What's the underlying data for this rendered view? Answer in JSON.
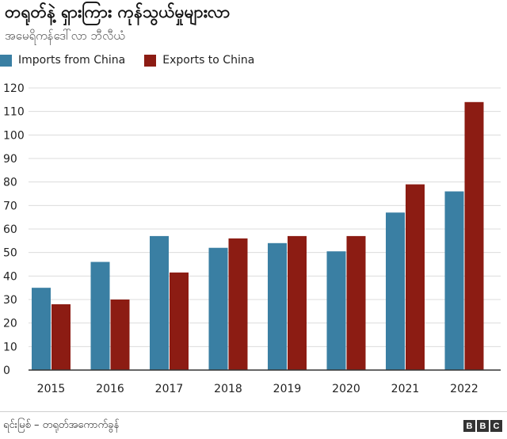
{
  "chart_data": {
    "type": "bar",
    "title": "တရုတ်နဲ့ ရှားကြား ကုန်သွယ်မှုများလာ",
    "subtitle": "အမေရိကန်ဒေါ်လာ ဘီလီယံ",
    "categories": [
      "2015",
      "2016",
      "2017",
      "2018",
      "2019",
      "2020",
      "2021",
      "2022"
    ],
    "series": [
      {
        "name": "Imports from China",
        "color": "#3a7fa3",
        "values": [
          35,
          46,
          57,
          52,
          54,
          50.5,
          67,
          76
        ]
      },
      {
        "name": "Exports to China",
        "color": "#8c1c13",
        "values": [
          28,
          30,
          41.5,
          56,
          57,
          57,
          79,
          114
        ]
      }
    ],
    "ylim": [
      0,
      120
    ],
    "yticks": [
      0,
      10,
      20,
      30,
      40,
      50,
      60,
      70,
      80,
      90,
      100,
      110,
      120
    ],
    "grid": true,
    "legend": "top-left"
  },
  "footer": {
    "source": "ရင်းမြစ် – တရုတ်အကောက်ခွန်",
    "logo_letters": [
      "B",
      "B",
      "C"
    ]
  }
}
